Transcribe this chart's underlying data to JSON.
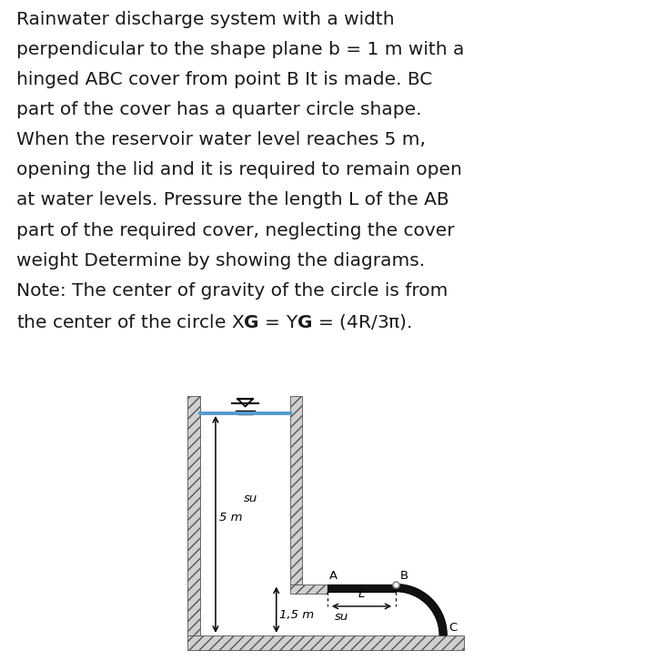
{
  "bg_color": "#ffffff",
  "wall_color": "#d0d0d0",
  "cover_color": "#111111",
  "water_color": "#5599cc",
  "text_color": "#1a1a1a",
  "text_fontsize": 14.5,
  "label_fontsize": 9.5,
  "lines": [
    "Rainwater discharge system with a width",
    "perpendicular to the shape plane b = 1 m with a",
    "hinged ABC cover from point B It is made. BC",
    "part of the cover has a quarter circle shape.",
    "When the reservoir water level reaches 5 m,",
    "opening the lid and it is required to remain open",
    "at water levels. Pressure the length L of the AB",
    "part of the required cover, neglecting the cover",
    "weight Determine by showing the diagrams.",
    "Note: The center of gravity of the circle is from",
    "the center of the circle XG = YG = (4R/3π)."
  ]
}
